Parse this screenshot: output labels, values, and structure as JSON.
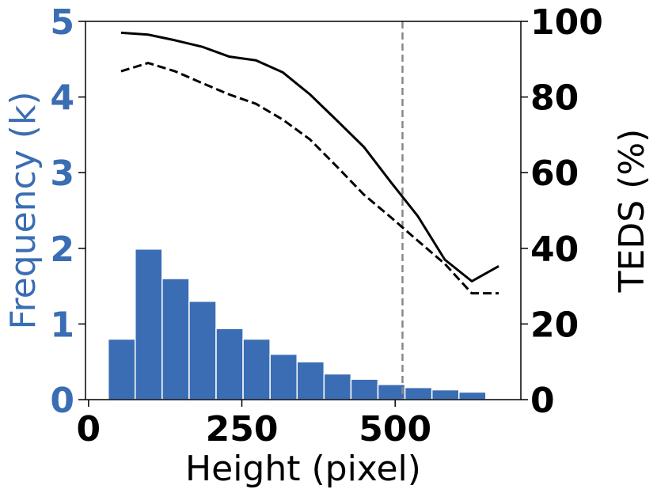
{
  "chart_data": {
    "type": "bar",
    "xlabel": "Height (pixel)",
    "ylabel": "Frequency (k)",
    "y2label": "TEDS (%)",
    "xlim": [
      -5,
      705
    ],
    "ylim": [
      0,
      5
    ],
    "y2lim": [
      0,
      100
    ],
    "xticks": [
      0,
      250,
      500
    ],
    "yticks": [
      0,
      1,
      2,
      3,
      4,
      5
    ],
    "y2ticks": [
      0,
      20,
      40,
      60,
      80,
      100
    ],
    "reference_line_x": 512,
    "histogram": {
      "bin_edges": [
        32,
        76,
        120,
        164,
        208,
        252,
        296,
        340,
        384,
        428,
        472,
        516,
        560,
        604,
        648,
        692
      ],
      "values": [
        0.8,
        1.99,
        1.6,
        1.3,
        0.94,
        0.8,
        0.6,
        0.5,
        0.34,
        0.27,
        0.2,
        0.16,
        0.13,
        0.1,
        0.01
      ],
      "color": "#3a6db3"
    },
    "series": [
      {
        "style": "solid",
        "color": "#000000",
        "x": [
          53,
          97,
          141,
          185,
          229,
          273,
          317,
          361,
          405,
          449,
          493,
          537,
          581,
          625,
          669
        ],
        "values": [
          97,
          96.5,
          95,
          93.3,
          90.7,
          89.7,
          86.5,
          80.7,
          73.8,
          66.8,
          57.5,
          48.5,
          37,
          31.3,
          35.3
        ]
      },
      {
        "style": "dashed",
        "color": "#000000",
        "x": [
          53,
          97,
          141,
          185,
          229,
          273,
          317,
          361,
          405,
          449,
          493,
          537,
          581,
          625,
          669
        ],
        "values": [
          86.8,
          89,
          86.8,
          83.7,
          80.7,
          78.2,
          74,
          68.8,
          61.6,
          54.2,
          48.2,
          42,
          35.9,
          28.1,
          28.1
        ]
      }
    ]
  }
}
